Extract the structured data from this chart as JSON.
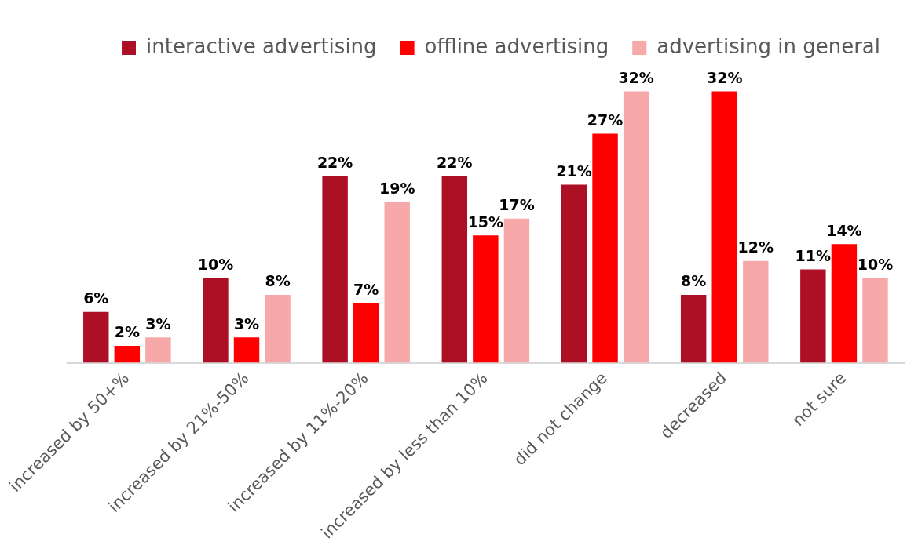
{
  "chart_data": {
    "type": "bar",
    "categories": [
      "increased by 50+%",
      "increased by 21%-50%",
      "increased by 11%-20%",
      "increased by less than 10%",
      "did not change",
      "decreased",
      "not sure"
    ],
    "series": [
      {
        "name": "interactive advertising",
        "color": "#ad0f24",
        "values": [
          6,
          10,
          22,
          22,
          21,
          8,
          11
        ],
        "value_labels": [
          "6%",
          "10%",
          "22%",
          "22%",
          "21%",
          "8%",
          "11%"
        ]
      },
      {
        "name": "offline advertising",
        "color": "#ff0000",
        "values": [
          2,
          3,
          7,
          15,
          27,
          32,
          14
        ],
        "value_labels": [
          "2%",
          "3%",
          "7%",
          "15%",
          "27%",
          "32%",
          "14%"
        ]
      },
      {
        "name": "advertising in general",
        "color": "#f7a8a8",
        "values": [
          3,
          8,
          19,
          17,
          32,
          12,
          10
        ],
        "value_labels": [
          "3%",
          "8%",
          "19%",
          "17%",
          "32%",
          "12%",
          "10%"
        ]
      }
    ],
    "legend": "top",
    "grid": false,
    "tick_labels": "x"
  }
}
